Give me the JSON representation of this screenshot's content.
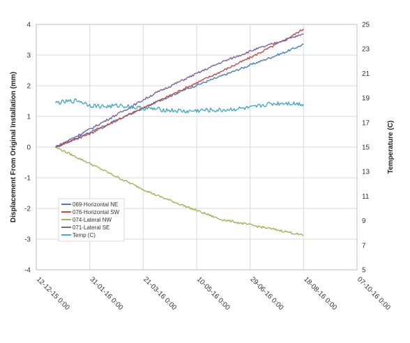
{
  "chart_data": {
    "type": "line",
    "ylabel": "Displacement From Original Installation (mm)",
    "y2label": "Temperature (C)",
    "ylim": [
      -4,
      4
    ],
    "y_ticks": [
      -4,
      -3,
      -2,
      -1,
      0,
      1,
      2,
      3,
      4
    ],
    "y2lim": [
      5,
      25
    ],
    "y2_ticks": [
      5,
      7,
      9,
      11,
      13,
      15,
      17,
      19,
      21,
      23,
      25
    ],
    "x_tick_labels": [
      "12-12-15 0:00",
      "31-01-16 0:00",
      "21-03-16 0:00",
      "10-05-16 0:00",
      "29-06-16 0:00",
      "18-08-16 0:00",
      "07-10-16 0:00"
    ],
    "x_tick_dates": [
      "2015-12-12",
      "2016-01-31",
      "2016-03-21",
      "2016-05-10",
      "2016-06-29",
      "2016-08-18",
      "2016-10-07"
    ],
    "grid": true,
    "legend_position": "bottom-left",
    "series": [
      {
        "name": "069-Horizontal NE",
        "color": "#4a7ebb",
        "axis": "left",
        "x": [
          "2015-12-30",
          "2016-02-01",
          "2016-03-01",
          "2016-04-01",
          "2016-05-01",
          "2016-06-01",
          "2016-07-01",
          "2016-08-01",
          "2016-08-18"
        ],
        "y": [
          0.0,
          0.5,
          0.95,
          1.45,
          1.9,
          2.3,
          2.7,
          3.1,
          3.35
        ]
      },
      {
        "name": "076-Horizontal SW",
        "color": "#be4b48",
        "axis": "left",
        "x": [
          "2015-12-30",
          "2016-02-01",
          "2016-03-01",
          "2016-04-01",
          "2016-05-01",
          "2016-06-01",
          "2016-07-01",
          "2016-08-01",
          "2016-08-18"
        ],
        "y": [
          0.0,
          0.45,
          0.95,
          1.45,
          1.95,
          2.45,
          2.95,
          3.5,
          3.85
        ]
      },
      {
        "name": "074-Lateral NW",
        "color": "#98b954",
        "axis": "left",
        "x": [
          "2015-12-30",
          "2016-02-01",
          "2016-03-01",
          "2016-04-01",
          "2016-05-01",
          "2016-06-01",
          "2016-07-01",
          "2016-08-01",
          "2016-08-18"
        ],
        "y": [
          0.0,
          -0.55,
          -1.05,
          -1.55,
          -1.95,
          -2.35,
          -2.55,
          -2.75,
          -2.88
        ]
      },
      {
        "name": "071-Lateral SE",
        "color": "#7d60a0",
        "axis": "left",
        "x": [
          "2015-12-30",
          "2016-02-01",
          "2016-03-01",
          "2016-04-01",
          "2016-05-01",
          "2016-06-01",
          "2016-07-01",
          "2016-08-01",
          "2016-08-18"
        ],
        "y": [
          0.0,
          0.6,
          1.15,
          1.75,
          2.25,
          2.75,
          3.15,
          3.5,
          3.68
        ]
      },
      {
        "name": "Temp (C)",
        "color": "#46aac5",
        "axis": "right",
        "x": [
          "2015-12-30",
          "2016-01-10",
          "2016-01-20",
          "2016-02-01",
          "2016-02-15",
          "2016-03-01",
          "2016-03-15",
          "2016-04-01",
          "2016-04-15",
          "2016-05-01",
          "2016-05-15",
          "2016-06-01",
          "2016-06-15",
          "2016-07-01",
          "2016-07-15",
          "2016-08-01",
          "2016-08-18"
        ],
        "y": [
          18.6,
          18.7,
          18.8,
          18.4,
          18.3,
          18.4,
          18.2,
          18.1,
          18.0,
          17.9,
          18.0,
          18.0,
          18.1,
          18.2,
          18.5,
          18.6,
          18.5
        ]
      }
    ]
  }
}
